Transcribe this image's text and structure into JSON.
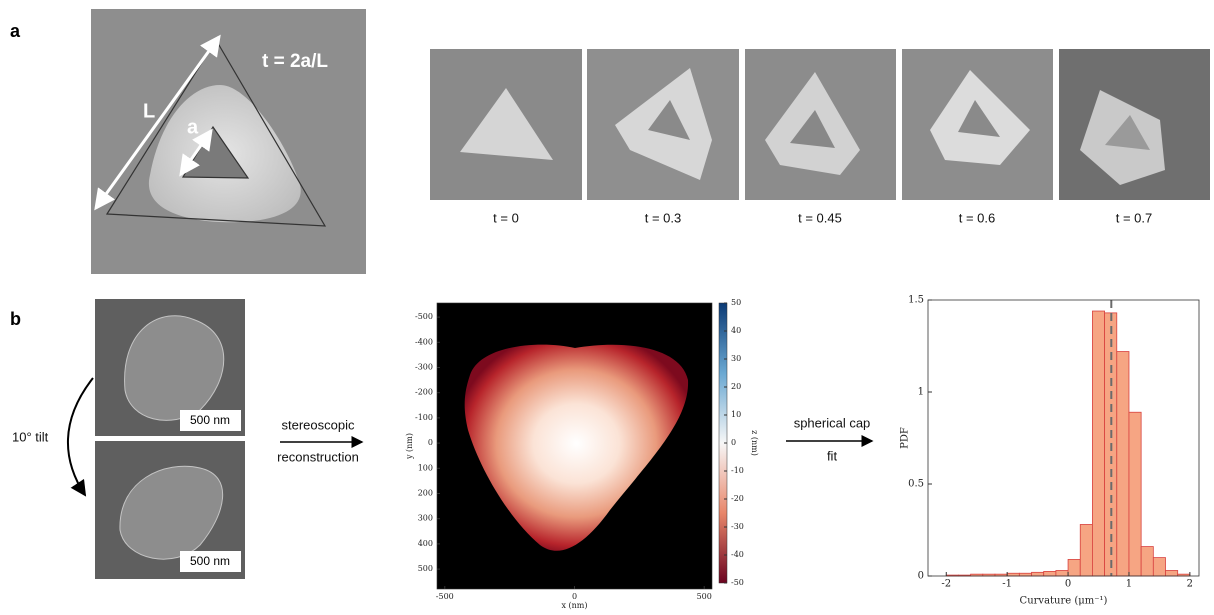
{
  "panel_labels": [
    "a",
    "b"
  ],
  "panel_a": {
    "length_label": "L",
    "edge_label": "a",
    "formula": "t = 2a/L",
    "captions": [
      "t = 0",
      "t = 0.3",
      "t = 0.45",
      "t = 0.6",
      "t = 0.7"
    ]
  },
  "panel_b": {
    "scale_bars": [
      "500 nm",
      "500 nm"
    ],
    "tilt": "10° tilt",
    "step1": [
      "stereoscopic",
      "reconstruction"
    ],
    "step2": [
      "spherical cap",
      "fit"
    ]
  },
  "chart_data": [
    {
      "type": "heatmap",
      "xlabel": "x (nm)",
      "ylabel": "y (nm)",
      "colorbar_label": "z (nm)",
      "xlim": [
        -530,
        530
      ],
      "ylim": [
        -556,
        579
      ],
      "y_inverted": true,
      "xticks": [
        -500,
        0,
        500
      ],
      "yticks": [
        -500,
        -400,
        -300,
        -200,
        -100,
        0,
        100,
        200,
        300,
        400,
        500
      ],
      "clim": [
        -50,
        50
      ],
      "cticks": [
        50,
        40,
        30,
        20,
        10,
        0,
        -10,
        -20,
        -30,
        -40,
        -50
      ]
    },
    {
      "type": "histogram",
      "xlabel": "Curvature (μm⁻¹)",
      "ylabel": "PDF",
      "bins": [
        -2,
        -1.8,
        -1.6,
        -1.4,
        -1.2,
        -1,
        -0.8,
        -0.6,
        -0.4,
        -0.2,
        0,
        0.2,
        0.4,
        0.6,
        0.8,
        1,
        1.2,
        1.4,
        1.6,
        1.8,
        2
      ],
      "counts": [
        0.005,
        0.005,
        0.01,
        0.01,
        0.01,
        0.015,
        0.015,
        0.02,
        0.025,
        0.03,
        0.09,
        0.28,
        1.44,
        1.43,
        1.22,
        0.89,
        0.16,
        0.1,
        0.03,
        0.01
      ],
      "color": "#f6a583",
      "edgecolor": "#d8413f",
      "reference_line": 0.71,
      "xlim": [
        -2.3,
        2.15
      ],
      "ylim": [
        0,
        1.5
      ],
      "xticks": [
        -2,
        -1,
        0,
        1,
        2
      ],
      "yticks": [
        0,
        0.5,
        1,
        1.5
      ]
    }
  ]
}
